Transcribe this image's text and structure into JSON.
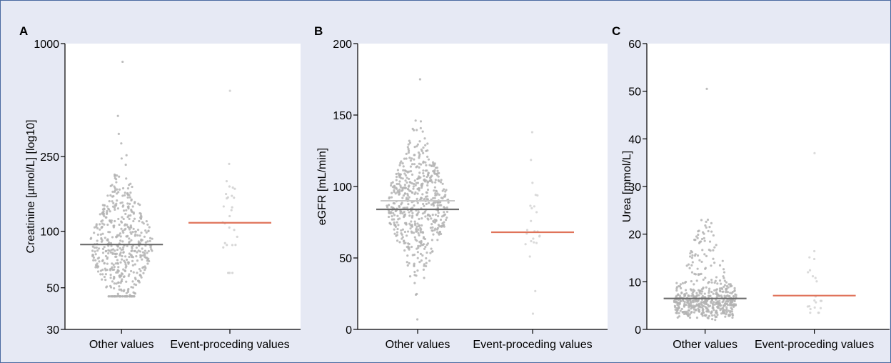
{
  "chart_data": [
    {
      "type": "scatter",
      "panel": "A",
      "ylabel": "Creatinine [µmol/L] [log10]",
      "yscale": "log",
      "ylim": [
        30,
        1000
      ],
      "yticks": [
        30,
        50,
        100,
        250,
        1000
      ],
      "categories": [
        "Other values",
        "Event-proceding values"
      ],
      "series": [
        {
          "median": 85,
          "range": [
            45,
            800
          ],
          "center": 85,
          "spread": 0.18,
          "count": 520,
          "color": "#b3b3b3",
          "line_color": "#6b6b6b"
        },
        {
          "median": 111,
          "range": [
            60,
            560
          ],
          "center": 108,
          "spread": 0.2,
          "count": 28,
          "color": "#cfcfcf",
          "line_color": "#e0735a"
        }
      ]
    },
    {
      "type": "scatter",
      "panel": "B",
      "ylabel": "eGFR [mL/min]",
      "yscale": "linear",
      "ylim": [
        0,
        200
      ],
      "yticks": [
        0,
        50,
        100,
        150,
        200
      ],
      "categories": [
        "Other values",
        "Event-proceding values"
      ],
      "series": [
        {
          "median": 84,
          "mean": 90,
          "range": [
            7,
            175
          ],
          "center": 87,
          "spread": 22,
          "count": 560,
          "color": "#b3b3b3",
          "line_color": "#6b6b6b",
          "mean_color": "#c8c8c8"
        },
        {
          "median": 68,
          "range": [
            11,
            138
          ],
          "center": 68,
          "spread": 25,
          "count": 24,
          "color": "#d3d3d3",
          "line_color": "#e0735a"
        }
      ]
    },
    {
      "type": "scatter",
      "panel": "C",
      "ylabel": "Urea [mmol/L]",
      "yscale": "linear",
      "ylim": [
        0,
        60
      ],
      "yticks": [
        0,
        10,
        20,
        30,
        40,
        50,
        60
      ],
      "categories": [
        "Other values",
        "Event-proceding values"
      ],
      "series": [
        {
          "median": 6.5,
          "range": [
            2,
            50.5
          ],
          "center": 6.5,
          "spread": 2.5,
          "count": 540,
          "color": "#b3b3b3",
          "line_color": "#6b6b6b"
        },
        {
          "median": 7.1,
          "range": [
            3.5,
            37
          ],
          "center": 8,
          "spread": 4,
          "count": 22,
          "color": "#d3d3d3",
          "line_color": "#e0735a"
        }
      ]
    }
  ]
}
